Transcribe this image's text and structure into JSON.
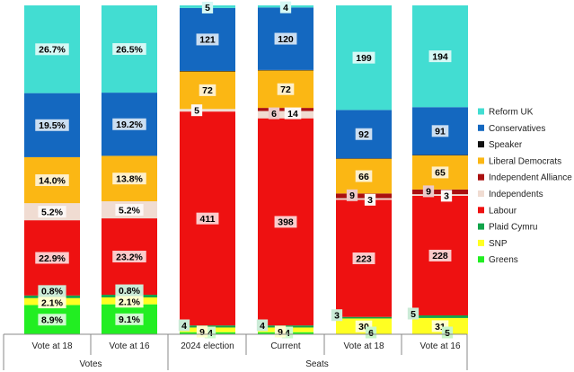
{
  "chart_data": {
    "type": "bar",
    "stacked": true,
    "percent_stacked": true,
    "columns": [
      {
        "label": "Vote at 18",
        "group": "Votes"
      },
      {
        "label": "Vote at 16",
        "group": "Votes"
      },
      {
        "label": "2024 election",
        "group": "Seats"
      },
      {
        "label": "Current",
        "group": "Seats"
      },
      {
        "label": "Vote at 18",
        "group": "Seats"
      },
      {
        "label": "Vote at 16",
        "group": "Seats"
      }
    ],
    "groups": [
      "Votes",
      "Seats"
    ],
    "series": [
      {
        "name": "Greens",
        "color": "#22ee22",
        "values": [
          8.9,
          9.1,
          4,
          4,
          0,
          0
        ],
        "labels": [
          "8.9%",
          "9.1%",
          "4",
          "4",
          "",
          ""
        ]
      },
      {
        "name": "SNP",
        "color": "#ffff22",
        "values": [
          2.1,
          2.1,
          9,
          9,
          30,
          31
        ],
        "labels": [
          "2.1%",
          "2.1%",
          "9",
          "9",
          "30",
          "31"
        ]
      },
      {
        "name": "Plaid Cymru",
        "color": "#11a44a",
        "values": [
          0.8,
          0.8,
          4,
          4,
          3,
          5
        ],
        "labels": [
          "0.8%",
          "0.8%",
          "4",
          "4",
          "3",
          "5"
        ]
      },
      {
        "name": "Labour",
        "color": "#ee1111",
        "values": [
          22.9,
          23.2,
          411,
          398,
          223,
          228
        ],
        "labels": [
          "22.9%",
          "23.2%",
          "411",
          "398",
          "223",
          "228"
        ]
      },
      {
        "name": "Independents",
        "color": "#f0dcd2",
        "values": [
          5.2,
          5.2,
          5,
          14,
          3,
          3
        ],
        "labels": [
          "5.2%",
          "5.2%",
          "5",
          "14",
          "3",
          "3"
        ]
      },
      {
        "name": "Independent Alliance",
        "color": "#aa1010",
        "values": [
          0,
          0,
          0,
          6,
          9,
          9
        ],
        "labels": [
          "",
          "",
          "",
          "6",
          "9",
          "9"
        ]
      },
      {
        "name": "Liberal Democrats",
        "color": "#fbb714",
        "values": [
          14.0,
          13.8,
          72,
          72,
          66,
          65
        ],
        "labels": [
          "14.0%",
          "13.8%",
          "72",
          "72",
          "66",
          "65"
        ]
      },
      {
        "name": "Speaker",
        "color": "#111111",
        "values": [
          0,
          0,
          1,
          1,
          1,
          1
        ],
        "labels": [
          "",
          "",
          "",
          "",
          "",
          ""
        ]
      },
      {
        "name": "Conservatives",
        "color": "#1468c0",
        "values": [
          19.5,
          19.2,
          121,
          120,
          92,
          91
        ],
        "labels": [
          "19.5%",
          "19.2%",
          "121",
          "120",
          "92",
          "91"
        ]
      },
      {
        "name": "Reform UK",
        "color": "#42ddd2",
        "values": [
          26.7,
          26.5,
          5,
          4,
          199,
          194
        ],
        "labels": [
          "26.7%",
          "26.5%",
          "5",
          "4",
          "199",
          "194"
        ]
      }
    ],
    "extra_labels": [
      {
        "column": 4,
        "value": "6"
      },
      {
        "column": 5,
        "value": "5"
      }
    ],
    "legend": {
      "position": "right",
      "order": [
        "Reform UK",
        "Conservatives",
        "Speaker",
        "Liberal Democrats",
        "Independent Alliance",
        "Independents",
        "Labour",
        "Plaid Cymru",
        "SNP",
        "Greens"
      ]
    },
    "grid": false
  }
}
